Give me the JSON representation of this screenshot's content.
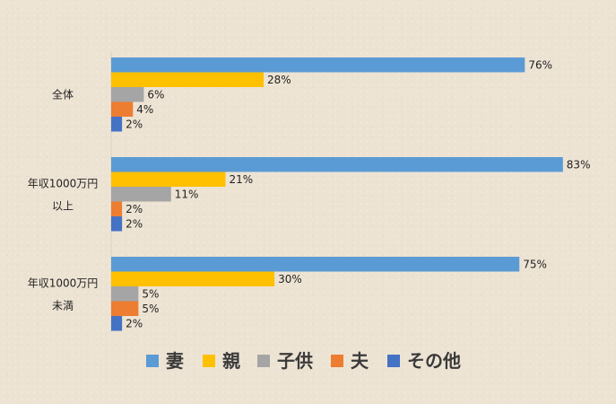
{
  "chart_data": {
    "type": "bar",
    "orientation": "horizontal",
    "categories": [
      [
        "全体"
      ],
      [
        "年収1000万円",
        "以上"
      ],
      [
        "年収1000万円",
        "未満"
      ]
    ],
    "series": [
      {
        "name": "妻",
        "color": "#5b9bd5",
        "values": [
          76,
          83,
          75
        ]
      },
      {
        "name": "親",
        "color": "#ffc000",
        "values": [
          28,
          21,
          30
        ]
      },
      {
        "name": "子供",
        "color": "#a5a5a5",
        "values": [
          6,
          11,
          5
        ]
      },
      {
        "name": "夫",
        "color": "#ed7d31",
        "values": [
          4,
          2,
          5
        ]
      },
      {
        "name": "その他",
        "color": "#4472c4",
        "values": [
          2,
          2,
          2
        ]
      }
    ],
    "value_suffix": "%",
    "xlim": [
      0,
      85
    ],
    "grid": false,
    "legend_position": "bottom"
  }
}
